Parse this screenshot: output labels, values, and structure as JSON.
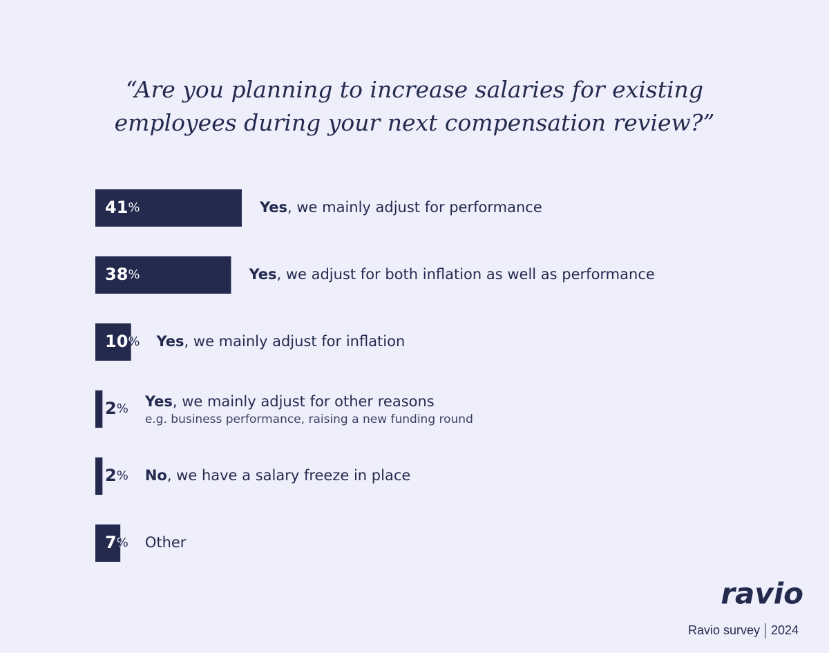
{
  "chart_data": {
    "type": "bar",
    "orientation": "horizontal",
    "title": "“Are you planning to increase salaries for existing employees during your next compensation review?”",
    "categories": [
      "Yes, we mainly adjust for performance",
      "Yes, we adjust for both inflation as well as performance",
      "Yes, we mainly adjust for inflation",
      "Yes, we mainly adjust for other reasons",
      "No, we have a salary freeze in place",
      "Other"
    ],
    "category_notes": [
      null,
      null,
      null,
      "e.g. business performance, raising a new funding round",
      null,
      null
    ],
    "values": [
      41,
      38,
      10,
      2,
      2,
      7
    ],
    "value_labels": [
      "41%",
      "38%",
      "10%",
      "2%",
      "2%",
      "7%"
    ],
    "color": "#232a4e",
    "logo": "ravio",
    "source": "Ravio survey",
    "year": "2024"
  }
}
